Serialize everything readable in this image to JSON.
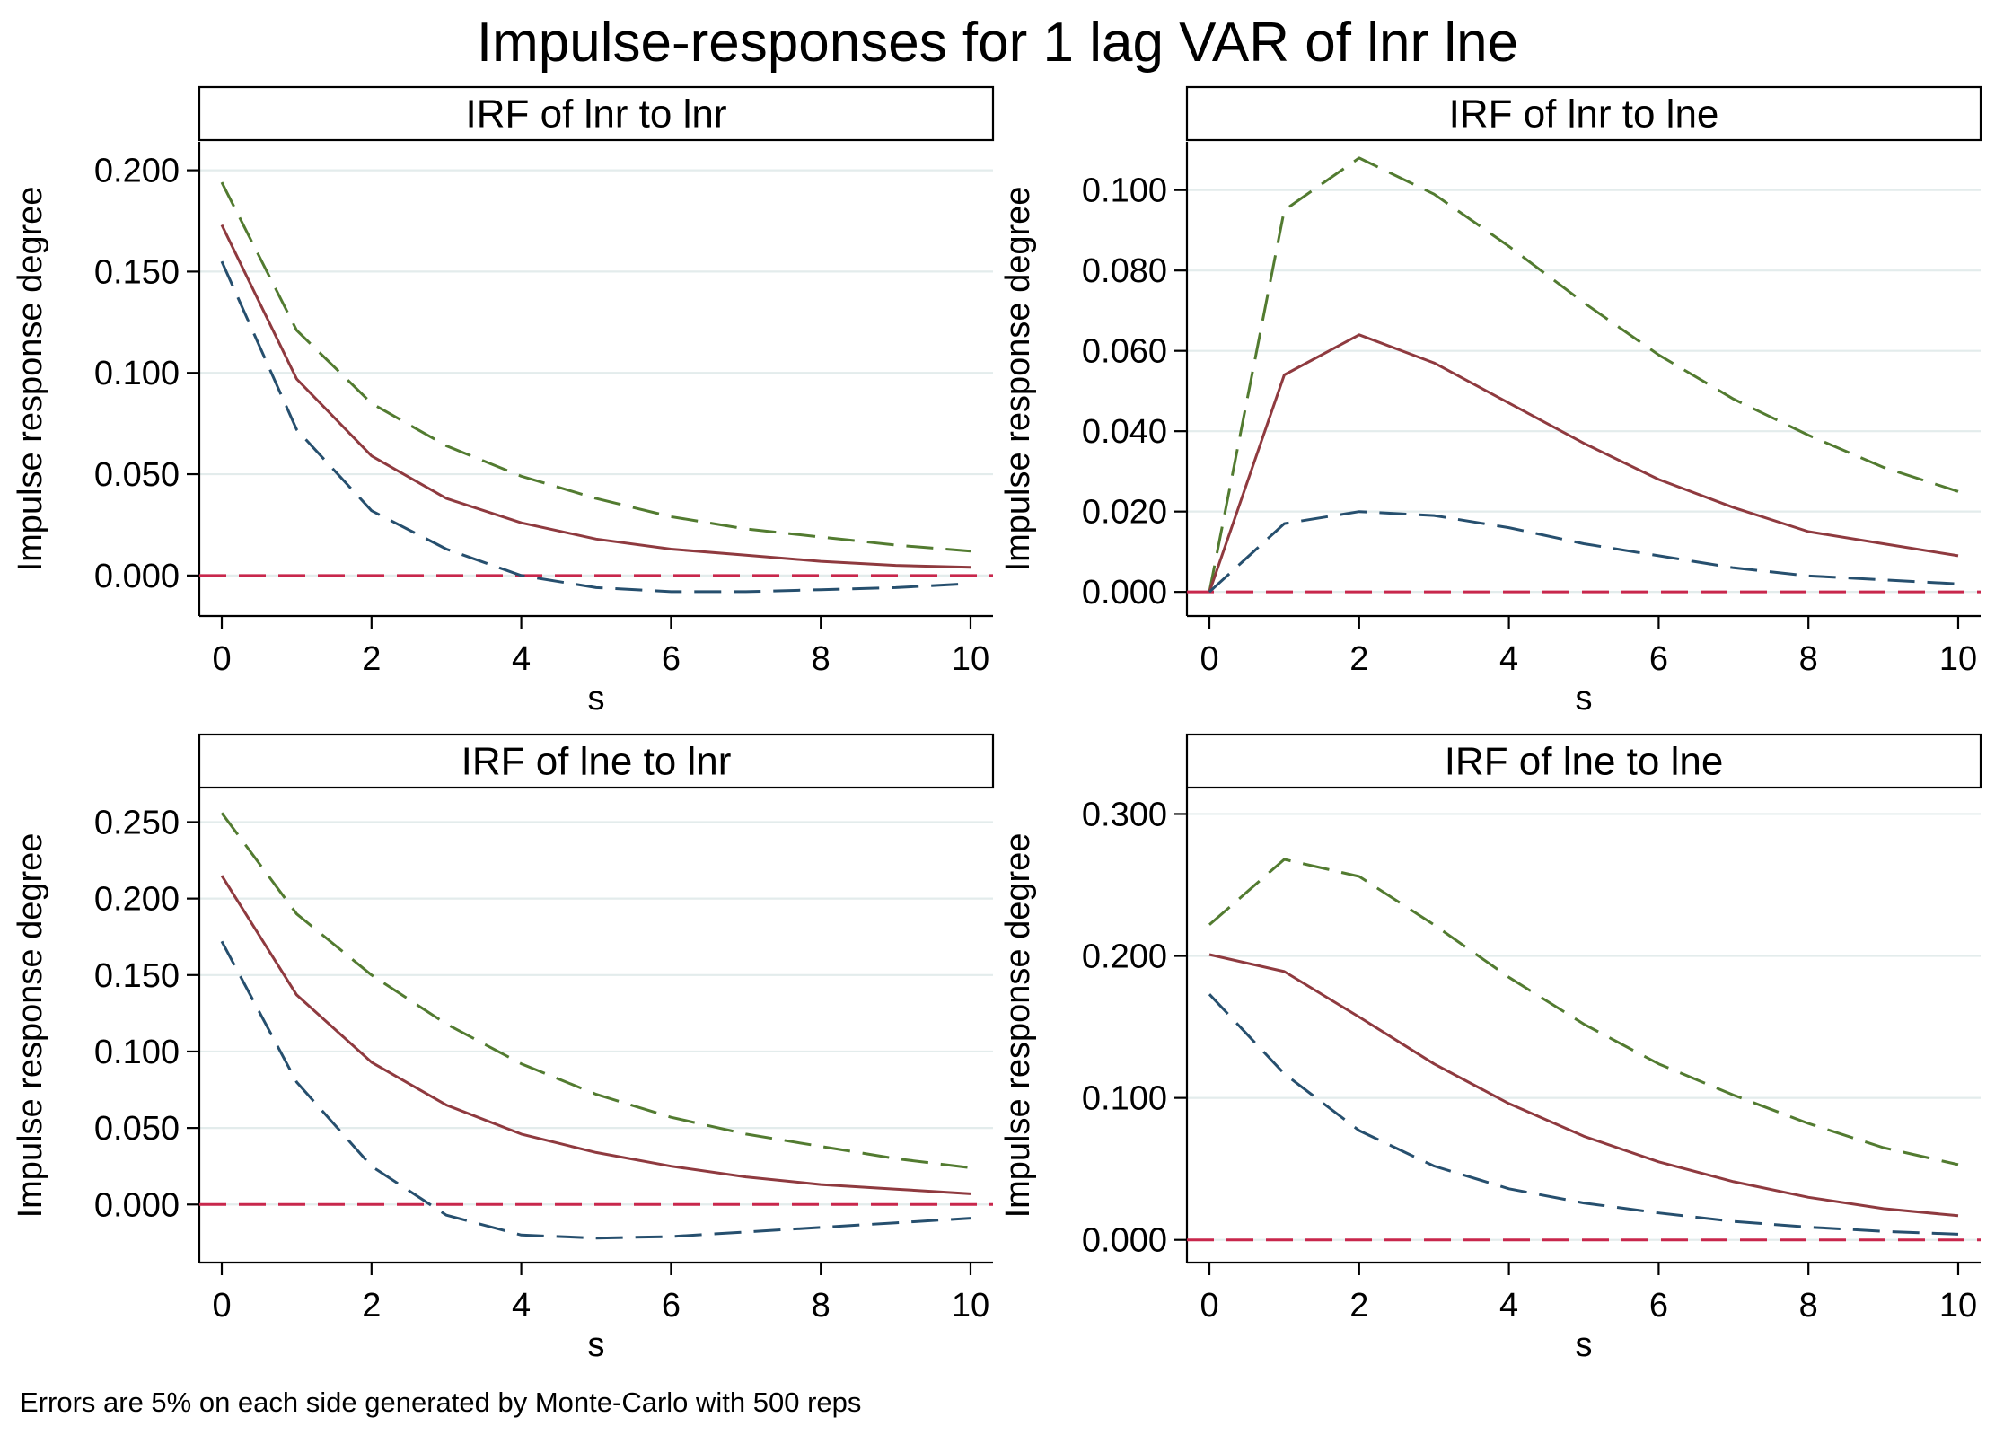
{
  "figure": {
    "title": "Impulse-responses for 1 lag VAR of lnr lne",
    "note": "Errors are 5% on each side generated by Monte-Carlo with 500 reps",
    "colors": {
      "irf": "#8f3a3f",
      "upper": "#527b30",
      "lower": "#264f6e",
      "zero": "#c8274c"
    }
  },
  "chart_data": [
    {
      "type": "line",
      "title": "IRF of lnr to lnr",
      "xlabel": "s",
      "ylabel": "Impulse response degree",
      "xlim": [
        -0.3,
        10.3
      ],
      "ylim": [
        -0.02,
        0.214
      ],
      "xticks": [
        0,
        2,
        4,
        6,
        8,
        10
      ],
      "xtick_labels": [
        "0",
        "2",
        "4",
        "6",
        "8",
        "10"
      ],
      "yticks": [
        0,
        0.05,
        0.1,
        0.15,
        0.2
      ],
      "ytick_labels": [
        "0.000",
        "0.050",
        "0.100",
        "0.150",
        "0.200"
      ],
      "x": [
        0,
        1,
        2,
        3,
        4,
        5,
        6,
        7,
        8,
        9,
        10
      ],
      "series": [
        {
          "name": "upper",
          "style": "dash",
          "values": [
            0.194,
            0.121,
            0.085,
            0.064,
            0.049,
            0.038,
            0.029,
            0.023,
            0.019,
            0.015,
            0.012
          ]
        },
        {
          "name": "irf",
          "style": "solid",
          "values": [
            0.173,
            0.097,
            0.059,
            0.038,
            0.026,
            0.018,
            0.013,
            0.01,
            0.007,
            0.005,
            0.004
          ]
        },
        {
          "name": "lower",
          "style": "dash",
          "values": [
            0.155,
            0.072,
            0.032,
            0.013,
            0.0,
            -0.006,
            -0.008,
            -0.008,
            -0.007,
            -0.006,
            -0.004
          ]
        }
      ],
      "zero_line": 0
    },
    {
      "type": "line",
      "title": "IRF of lnr to lne",
      "xlabel": "s",
      "ylabel": "Impulse response degree",
      "xlim": [
        -0.3,
        10.3
      ],
      "ylim": [
        -0.006,
        0.112
      ],
      "xticks": [
        0,
        2,
        4,
        6,
        8,
        10
      ],
      "xtick_labels": [
        "0",
        "2",
        "4",
        "6",
        "8",
        "10"
      ],
      "yticks": [
        0,
        0.02,
        0.04,
        0.06,
        0.08,
        0.1
      ],
      "ytick_labels": [
        "0.000",
        "0.020",
        "0.040",
        "0.060",
        "0.080",
        "0.100"
      ],
      "x": [
        0,
        1,
        2,
        3,
        4,
        5,
        6,
        7,
        8,
        9,
        10
      ],
      "series": [
        {
          "name": "upper",
          "style": "dash",
          "values": [
            0.0,
            0.095,
            0.108,
            0.099,
            0.086,
            0.072,
            0.059,
            0.048,
            0.039,
            0.031,
            0.025
          ]
        },
        {
          "name": "irf",
          "style": "solid",
          "values": [
            0.0,
            0.054,
            0.064,
            0.057,
            0.047,
            0.037,
            0.028,
            0.021,
            0.015,
            0.012,
            0.009
          ]
        },
        {
          "name": "lower",
          "style": "dash",
          "values": [
            0.0,
            0.017,
            0.02,
            0.019,
            0.016,
            0.012,
            0.009,
            0.006,
            0.004,
            0.003,
            0.002
          ]
        }
      ],
      "zero_line": 0
    },
    {
      "type": "line",
      "title": "IRF of lne to lnr",
      "xlabel": "s",
      "ylabel": "Impulse response degree",
      "xlim": [
        -0.3,
        10.3
      ],
      "ylim": [
        -0.038,
        0.272
      ],
      "xticks": [
        0,
        2,
        4,
        6,
        8,
        10
      ],
      "xtick_labels": [
        "0",
        "2",
        "4",
        "6",
        "8",
        "10"
      ],
      "yticks": [
        0,
        0.05,
        0.1,
        0.15,
        0.2,
        0.25
      ],
      "ytick_labels": [
        "0.000",
        "0.050",
        "0.100",
        "0.150",
        "0.200",
        "0.250"
      ],
      "x": [
        0,
        1,
        2,
        3,
        4,
        5,
        6,
        7,
        8,
        9,
        10
      ],
      "series": [
        {
          "name": "upper",
          "style": "dash",
          "values": [
            0.256,
            0.19,
            0.15,
            0.118,
            0.092,
            0.072,
            0.057,
            0.046,
            0.038,
            0.03,
            0.024
          ]
        },
        {
          "name": "irf",
          "style": "solid",
          "values": [
            0.215,
            0.137,
            0.093,
            0.065,
            0.046,
            0.034,
            0.025,
            0.018,
            0.013,
            0.01,
            0.007
          ]
        },
        {
          "name": "lower",
          "style": "dash",
          "values": [
            0.172,
            0.08,
            0.025,
            -0.007,
            -0.02,
            -0.022,
            -0.021,
            -0.018,
            -0.015,
            -0.012,
            -0.009
          ]
        }
      ],
      "zero_line": 0
    },
    {
      "type": "line",
      "title": "IRF of lne to lne",
      "xlabel": "s",
      "ylabel": "Impulse response degree",
      "xlim": [
        -0.3,
        10.3
      ],
      "ylim": [
        -0.016,
        0.318
      ],
      "xticks": [
        0,
        2,
        4,
        6,
        8,
        10
      ],
      "xtick_labels": [
        "0",
        "2",
        "4",
        "6",
        "8",
        "10"
      ],
      "yticks": [
        0,
        0.1,
        0.2,
        0.3
      ],
      "ytick_labels": [
        "0.000",
        "0.100",
        "0.200",
        "0.300"
      ],
      "x": [
        0,
        1,
        2,
        3,
        4,
        5,
        6,
        7,
        8,
        9,
        10
      ],
      "series": [
        {
          "name": "upper",
          "style": "dash",
          "values": [
            0.222,
            0.268,
            0.256,
            0.222,
            0.185,
            0.152,
            0.124,
            0.102,
            0.082,
            0.065,
            0.053
          ]
        },
        {
          "name": "irf",
          "style": "solid",
          "values": [
            0.201,
            0.189,
            0.157,
            0.124,
            0.096,
            0.073,
            0.055,
            0.041,
            0.03,
            0.022,
            0.017
          ]
        },
        {
          "name": "lower",
          "style": "dash",
          "values": [
            0.173,
            0.117,
            0.077,
            0.052,
            0.036,
            0.026,
            0.019,
            0.013,
            0.009,
            0.006,
            0.004
          ]
        }
      ],
      "zero_line": 0
    }
  ]
}
